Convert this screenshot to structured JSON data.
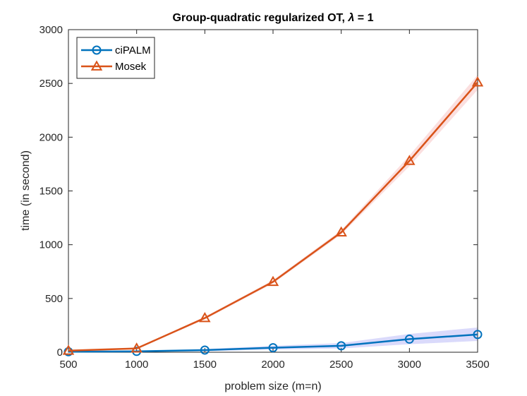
{
  "chart_data": {
    "type": "line",
    "title": "Group-quadratic regularized OT, λ = 1",
    "title_prefix": "Group-quadratic regularized OT, ",
    "title_symbol": "λ",
    "title_suffix": " = 1",
    "xlabel": "problem size (m=n)",
    "ylabel": "time (in second)",
    "x": [
      500,
      1000,
      1500,
      2000,
      2500,
      3000,
      3500
    ],
    "xlim": [
      500,
      3500
    ],
    "ylim": [
      0,
      3000
    ],
    "xticks": [
      500,
      1000,
      1500,
      2000,
      2500,
      3000,
      3500
    ],
    "yticks": [
      0,
      500,
      1000,
      1500,
      2000,
      2500,
      3000
    ],
    "grid": false,
    "legend_location": "top-left",
    "series": [
      {
        "name": "ciPALM",
        "marker": "circle",
        "color": "#0072BD",
        "band_color": "#6b6bf0",
        "values": [
          5,
          8,
          20,
          42,
          60,
          122,
          165
        ],
        "band_low": [
          2,
          4,
          10,
          25,
          35,
          75,
          105
        ],
        "band_high": [
          8,
          12,
          30,
          60,
          85,
          170,
          230
        ]
      },
      {
        "name": "Mosek",
        "marker": "triangle",
        "color": "#D95319",
        "band_color": "#f08080",
        "values": [
          15,
          35,
          318,
          655,
          1115,
          1780,
          2510
        ],
        "band_low": [
          10,
          28,
          305,
          640,
          1095,
          1730,
          2440
        ],
        "band_high": [
          20,
          42,
          330,
          670,
          1135,
          1830,
          2580
        ]
      }
    ]
  }
}
